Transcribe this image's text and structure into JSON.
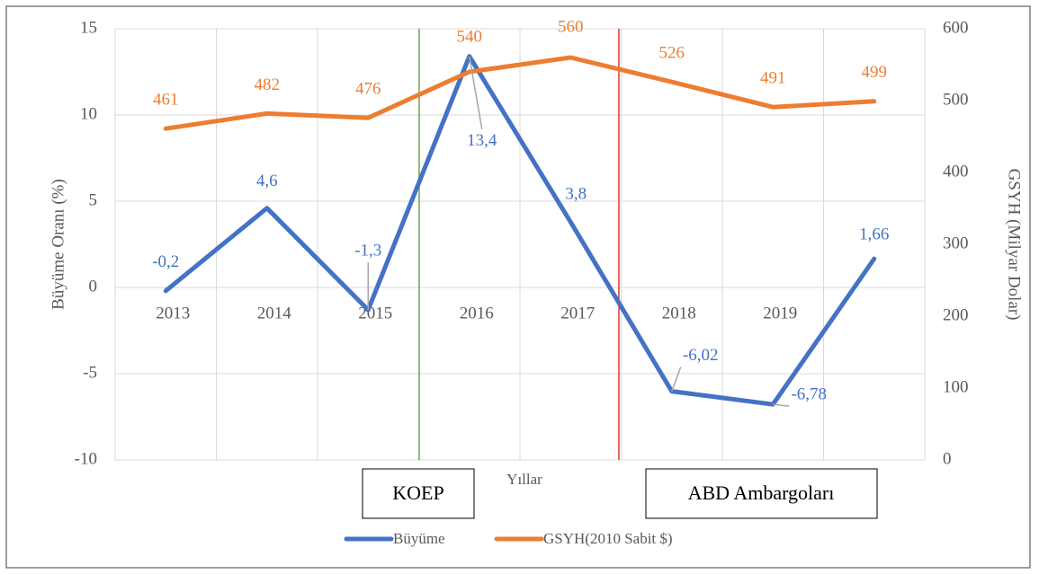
{
  "chart_data": {
    "type": "line",
    "x_label": "Yıllar",
    "y_label": "Büyüme Oranı (%)",
    "y2_label": "GSYH (Milyar Dolar)",
    "categories": [
      "2013",
      "2014",
      "2015",
      "2016",
      "2017",
      "2018",
      "2019",
      null
    ],
    "series": [
      {
        "name": "Büyüme",
        "color": "#4472c4",
        "values": [
          -0.2,
          4.6,
          -1.3,
          13.4,
          3.8,
          -6.02,
          -6.78,
          1.66
        ],
        "value_labels": [
          "-0,2",
          "4,6",
          "-1,3",
          "13,4",
          "3,8",
          "-6,02",
          "-6,78",
          "1,66"
        ]
      },
      {
        "name": "GSYH(2010 Sabit $)",
        "color": "#ed7d31",
        "axis": "y2",
        "values": [
          461,
          482,
          476,
          540,
          560,
          526,
          491,
          499
        ]
      }
    ],
    "ylim": [
      -10,
      15
    ],
    "yticks": [
      -10,
      -5,
      0,
      5,
      10,
      15
    ],
    "y2lim": [
      0,
      600
    ],
    "y2ticks": [
      0,
      100,
      200,
      300,
      400,
      500,
      600
    ],
    "grid": true,
    "legend": "bottom",
    "annotations": [
      "KOEP",
      "ABD Ambargoları"
    ]
  }
}
